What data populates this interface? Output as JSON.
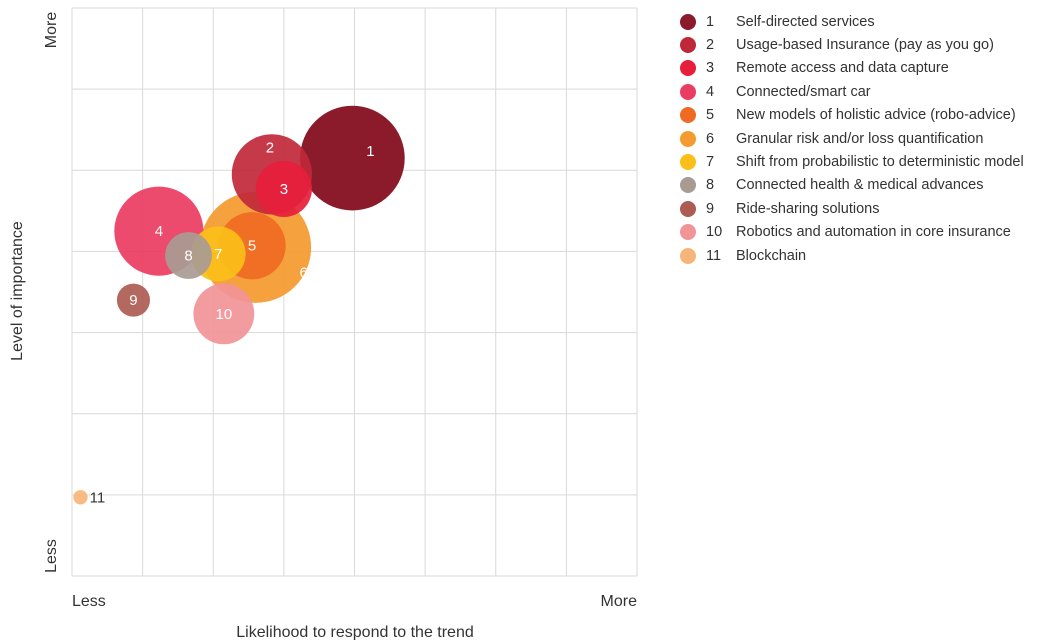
{
  "chart_data": {
    "type": "bubble",
    "xlabel": "Likelihood to respond to the trend",
    "ylabel": "Level of importance",
    "x_min_label": "Less",
    "x_max_label": "More",
    "y_min_label": "Less",
    "y_max_label": "More",
    "xlim": [
      0,
      8
    ],
    "ylim": [
      0,
      7
    ],
    "grid": true,
    "legend_position": "right",
    "points": [
      {
        "id": "1",
        "label": "Self-directed services",
        "x": 3.97,
        "y": 5.15,
        "size": 8.0,
        "color": "#8b1a2b"
      },
      {
        "id": "2",
        "label": "Usage-based Insurance (pay as you go)",
        "x": 2.83,
        "y": 4.95,
        "size": 4.7,
        "color": "#c0283a"
      },
      {
        "id": "3",
        "label": "Remote access and data capture",
        "x": 3.0,
        "y": 4.77,
        "size": 2.3,
        "color": "#e61e3c"
      },
      {
        "id": "4",
        "label": "Connected/smart car",
        "x": 1.23,
        "y": 4.25,
        "size": 5.8,
        "color": "#eb3c61"
      },
      {
        "id": "5",
        "label": "New models of holistic advice (robo-advice)",
        "x": 2.55,
        "y": 4.07,
        "size": 3.3,
        "color": "#f06a23"
      },
      {
        "id": "6",
        "label": "Granular risk and/or loss quantification",
        "x": 2.6,
        "y": 4.05,
        "size": 9.0,
        "color": "#f49a2e"
      },
      {
        "id": "7",
        "label": "Shift from probabilistic to deterministic model",
        "x": 2.07,
        "y": 3.97,
        "size": 2.2,
        "color": "#fbbf18"
      },
      {
        "id": "8",
        "label": "Connected health & medical advances",
        "x": 1.65,
        "y": 3.95,
        "size": 1.6,
        "color": "#a89b92"
      },
      {
        "id": "9",
        "label": "Ride-sharing solutions",
        "x": 0.87,
        "y": 3.4,
        "size": 0.8,
        "color": "#ac5c52"
      },
      {
        "id": "10",
        "label": "Robotics and automation in core insurance",
        "x": 2.15,
        "y": 3.23,
        "size": 2.7,
        "color": "#f19497"
      },
      {
        "id": "11",
        "label": "Blockchain",
        "x": 0.12,
        "y": 0.97,
        "size": 0.15,
        "color": "#f7b57a"
      }
    ]
  }
}
